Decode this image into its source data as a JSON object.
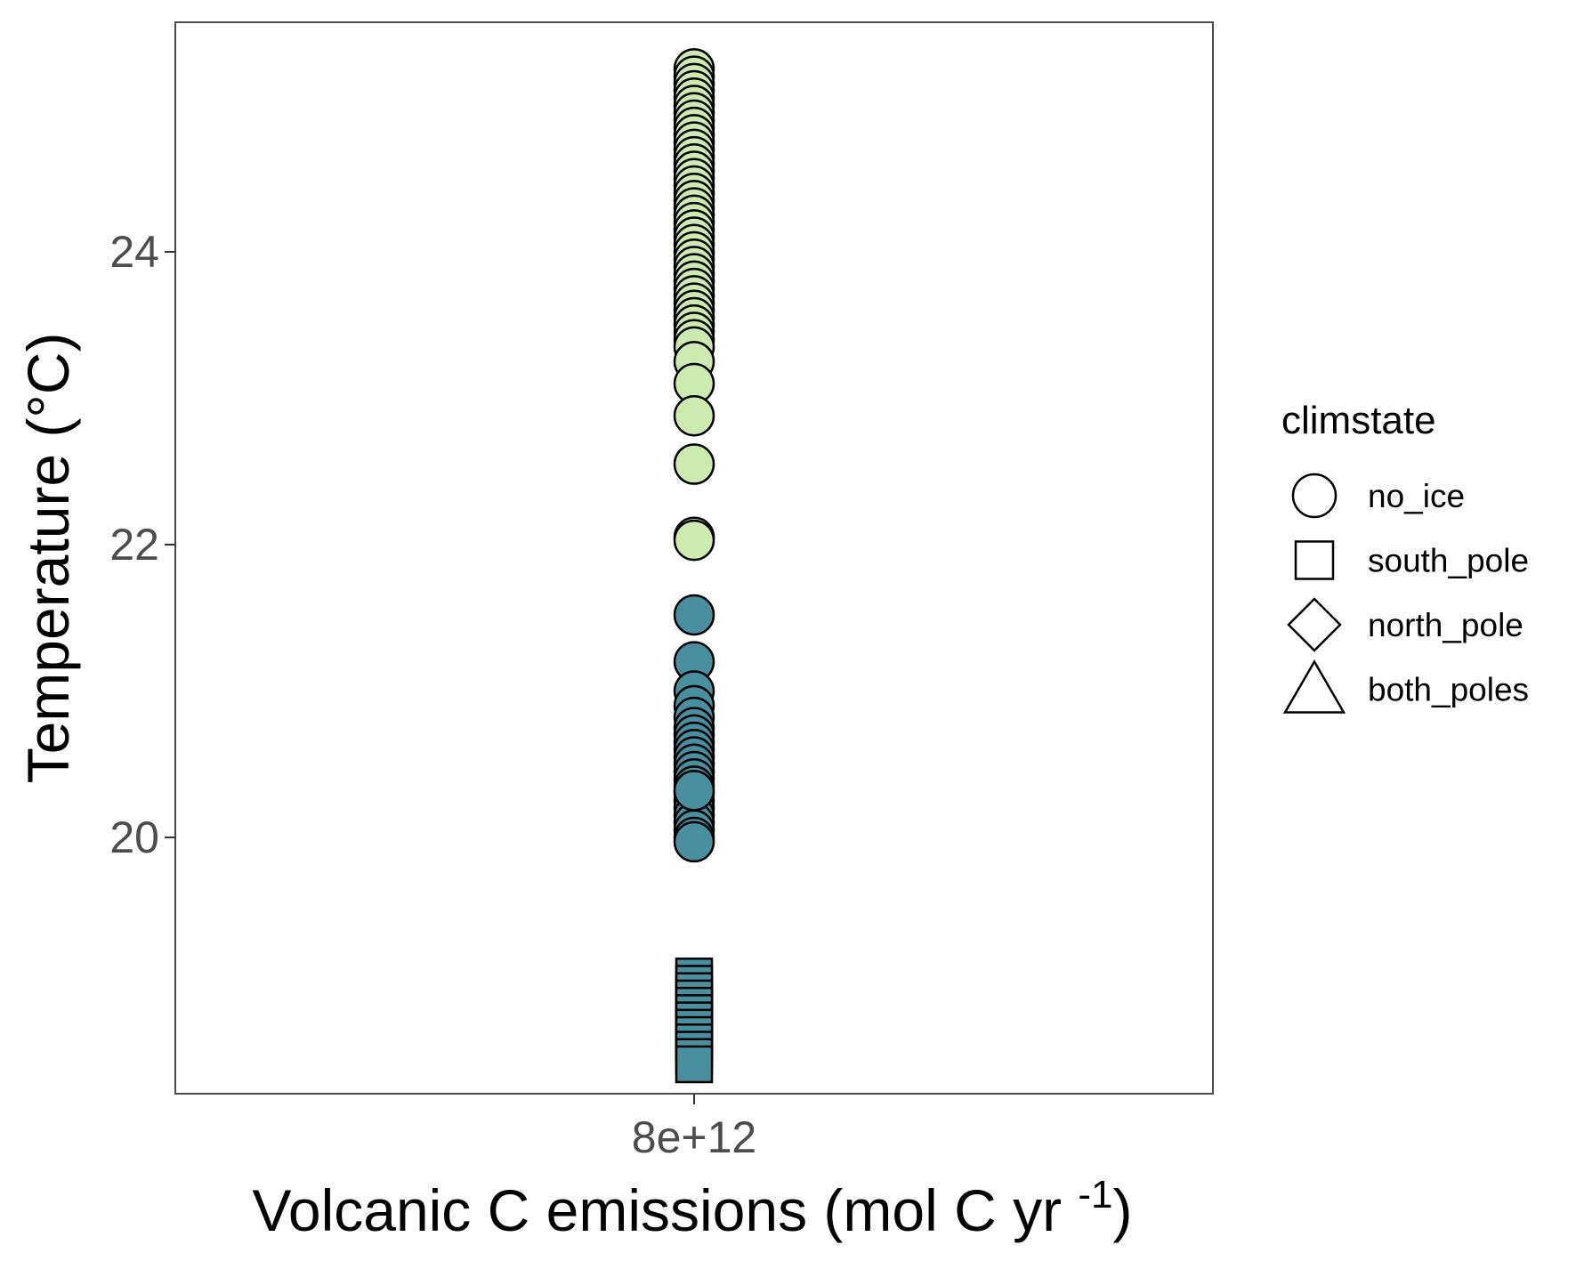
{
  "chart_data": {
    "type": "scatter",
    "xlabel": "Volcanic C emissions (mol C yr ",
    "xlabel_superscript": "-1",
    "xlabel_suffix": ")",
    "ylabel": "Temperature (°C)",
    "x_categories": [
      "8e+12"
    ],
    "yticks": [
      20,
      22,
      24
    ],
    "ylim": [
      18.3,
      25.6
    ],
    "grid": false,
    "legend": {
      "title": "climstate",
      "placement": "right",
      "items": [
        {
          "label": "no_ice",
          "shape": "circle"
        },
        {
          "label": "south_pole",
          "shape": "square"
        },
        {
          "label": "north_pole",
          "shape": "diamond"
        },
        {
          "label": "both_poles",
          "shape": "triangle"
        }
      ]
    },
    "colors": {
      "warm": "#cdebb0",
      "cool": "#4a8fa0",
      "outline": "#000000",
      "frame": "#4d4d4d"
    },
    "series": [
      {
        "climstate": "no_ice",
        "shape": "circle",
        "color": "#cdebb0",
        "x": "8e+12",
        "y": [
          25.25,
          25.2,
          25.15,
          25.1,
          25.05,
          25.0,
          24.95,
          24.9,
          24.85,
          24.8,
          24.75,
          24.7,
          24.65,
          24.6,
          24.55,
          24.5,
          24.45,
          24.4,
          24.35,
          24.3,
          24.25,
          24.2,
          24.15,
          24.1,
          24.05,
          24.0,
          23.95,
          23.9,
          23.85,
          23.8,
          23.75,
          23.7,
          23.65,
          23.6,
          23.55,
          23.5,
          23.45,
          23.4,
          23.35,
          23.25,
          23.1,
          22.88,
          22.55,
          22.05,
          22.03
        ]
      },
      {
        "climstate": "no_ice",
        "shape": "circle",
        "color": "#4a8fa0",
        "x": "8e+12",
        "y": [
          21.52,
          21.2,
          21.0,
          20.9,
          20.82,
          20.75,
          20.7,
          20.65,
          20.6,
          20.55,
          20.5,
          20.45,
          20.4,
          20.35,
          20.3,
          20.25,
          20.2,
          20.15,
          20.1,
          20.05,
          20.0,
          19.97,
          20.32
        ]
      },
      {
        "climstate": "south_pole",
        "shape": "square",
        "color": "#4a8fa0",
        "x": "8e+12",
        "y": [
          19.05,
          19.0,
          18.95,
          18.9,
          18.85,
          18.8,
          18.75,
          18.7,
          18.65,
          18.6,
          18.55,
          18.5,
          18.45
        ]
      }
    ]
  }
}
